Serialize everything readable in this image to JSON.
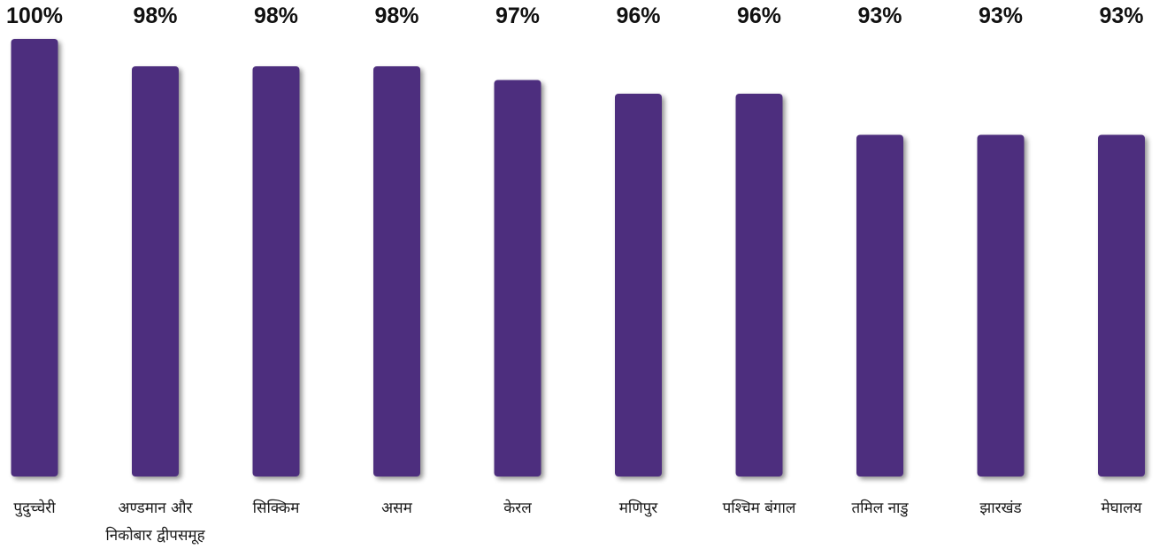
{
  "chart_data": {
    "type": "bar",
    "categories": [
      [
        "पुदुच्चेरी"
      ],
      [
        "अण्डमान और",
        "निकोबार द्वीपसमूह"
      ],
      [
        "सिक्किम"
      ],
      [
        "असम"
      ],
      [
        "केरल"
      ],
      [
        "मणिपुर"
      ],
      [
        "पश्चिम बंगाल"
      ],
      [
        "तमिल नाडु"
      ],
      [
        "झारखंड"
      ],
      [
        "मेघालय"
      ]
    ],
    "values": [
      100,
      98,
      98,
      98,
      97,
      96,
      96,
      93,
      93,
      93
    ],
    "value_labels": [
      "100%",
      "98%",
      "98%",
      "98%",
      "97%",
      "96%",
      "96%",
      "93%",
      "93%",
      "93%"
    ],
    "bar_color": "#4e2d7e",
    "title": "",
    "xlabel": "",
    "ylabel": "",
    "grid": false,
    "legend": "none"
  }
}
